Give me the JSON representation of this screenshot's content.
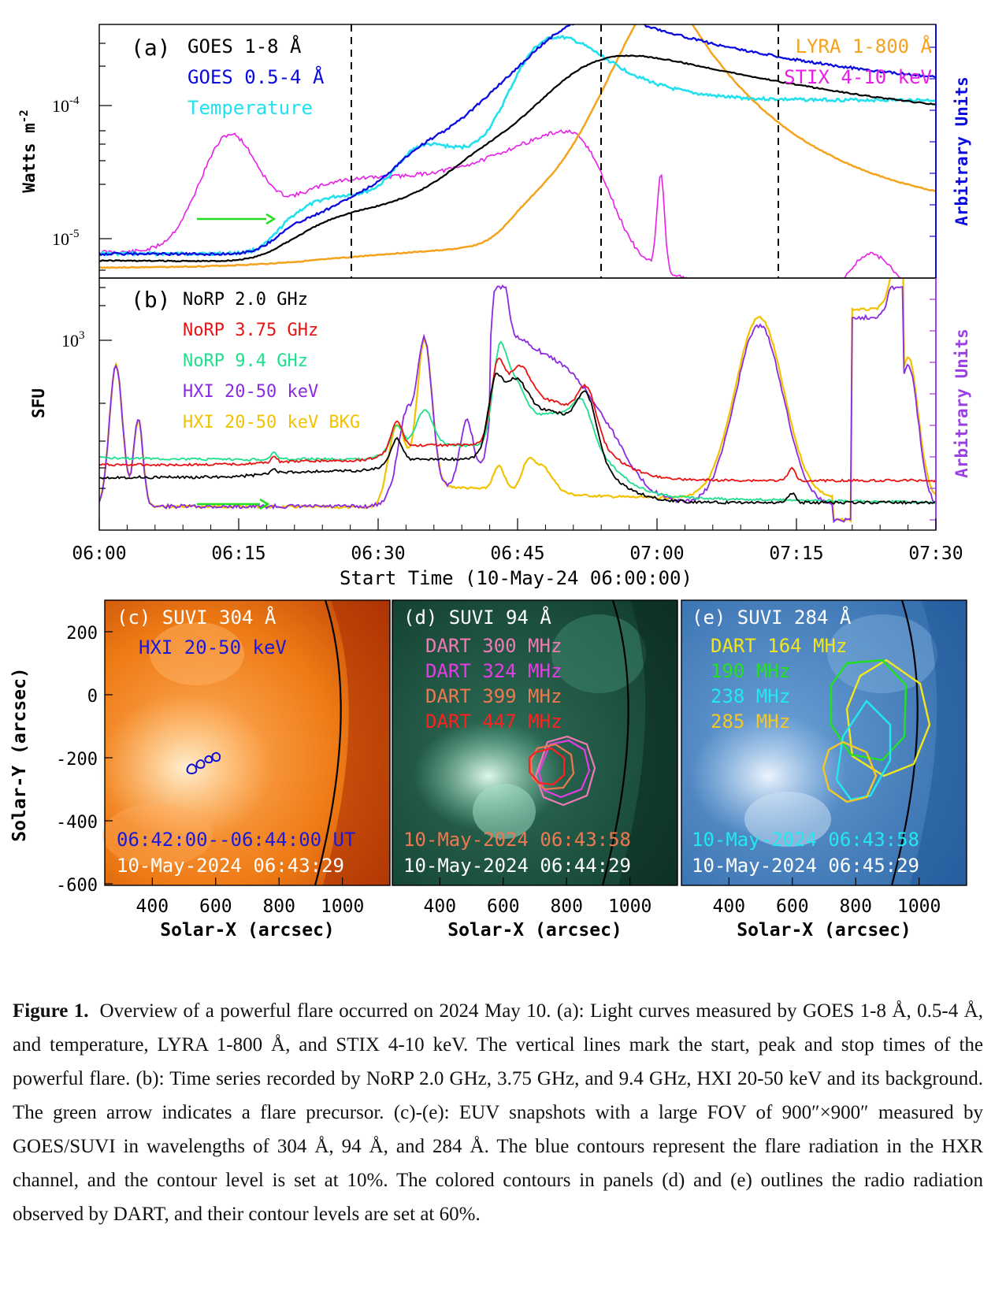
{
  "panel_a": {
    "label": "(a)",
    "ylabel_left": "Watts m",
    "ylabel_left_exp": "-2",
    "ylabel_right": "Arbitrary Units",
    "ytick_1": "10",
    "ytick_1_exp": "-4",
    "ytick_2": "10",
    "ytick_2_exp": "-5",
    "legend_left": [
      {
        "text": "GOES 1-8 Å",
        "color": "#000000"
      },
      {
        "text": "GOES 0.5-4 Å",
        "color": "#0a0ae0"
      },
      {
        "text": "Temperature",
        "color": "#22e0ee"
      }
    ],
    "legend_right": [
      {
        "text": "LYRA 1-800 Å",
        "color": "#f5a21c"
      },
      {
        "text": "STIX 4-10 keV",
        "color": "#e81ee8"
      }
    ],
    "axis_right_color": "#0a0ae0"
  },
  "panel_b": {
    "label": "(b)",
    "ylabel_left": "SFU",
    "ylabel_right": "Arbitrary Units",
    "ytick_1": "10",
    "ytick_1_exp": "3",
    "legend": [
      {
        "text": "NoRP 2.0 GHz",
        "color": "#000000"
      },
      {
        "text": "NoRP 3.75 GHz",
        "color": "#e81414"
      },
      {
        "text": "NoRP 9.4 GHz",
        "color": "#1ee08c"
      },
      {
        "text": "HXI 20-50 keV",
        "color": "#8a2be2"
      },
      {
        "text": "HXI 20-50 keV BKG",
        "color": "#f2c200"
      }
    ],
    "axis_right_color": "#9b3ee8"
  },
  "time_axis": {
    "ticks": [
      "06:00",
      "06:15",
      "06:30",
      "06:45",
      "07:00",
      "07:15",
      "07:30"
    ],
    "xlabel": "Start Time (10-May-24 06:00:00)"
  },
  "image_panels": {
    "ylabel": "Solar-Y (arcsec)",
    "xlabel": "Solar-X (arcsec)",
    "yticks": [
      "200",
      "0",
      "-200",
      "-400",
      "-600"
    ],
    "xticks": [
      "400",
      "600",
      "800",
      "1000"
    ],
    "panels": [
      {
        "title": "(c) SUVI 304 Å",
        "labels": [
          {
            "text": "HXI 20-50 keV",
            "color": "#1a1adc"
          }
        ],
        "time_contour": "06:42:00--06:44:00 UT",
        "time_contour_color": "#1a1adc",
        "time_image": "10-May-2024 06:43:29"
      },
      {
        "title": "(d) SUVI 94 Å",
        "labels": [
          {
            "text": "DART 300 MHz",
            "color": "#f07ab4"
          },
          {
            "text": "DART 324 MHz",
            "color": "#e63ce6"
          },
          {
            "text": "DART 399 MHz",
            "color": "#f07850"
          },
          {
            "text": "DART 447 MHz",
            "color": "#ff2020"
          }
        ],
        "time_contour": "10-May-2024 06:43:58",
        "time_contour_color": "#f07850",
        "time_image": "10-May-2024 06:44:29"
      },
      {
        "title": "(e) SUVI 284 Å",
        "labels": [
          {
            "text": "DART 164 MHz",
            "color": "#f2e61e"
          },
          {
            "text": "190 MHz",
            "color": "#22e022"
          },
          {
            "text": "238 MHz",
            "color": "#22e8f0"
          },
          {
            "text": "285 MHz",
            "color": "#f2c828"
          }
        ],
        "time_contour": "10-May-2024 06:43:58",
        "time_contour_color": "#22e8f0",
        "time_image": "10-May-2024 06:45:29"
      }
    ]
  },
  "caption": {
    "label": "Figure 1.",
    "text": "Overview of a powerful flare occurred on 2024 May 10. (a): Light curves measured by GOES 1-8 Å, 0.5-4 Å, and temperature, LYRA 1-800 Å, and STIX 4-10 keV. The vertical lines mark the start, peak and stop times of the powerful flare. (b): Time series recorded by NoRP 2.0 GHz, 3.75 GHz, and 9.4 GHz, HXI 20-50 keV and its background. The green arrow indicates a flare precursor. (c)-(e): EUV snapshots with a large FOV of 900″×900″ measured by GOES/SUVI in wavelengths of 304 Å, 94 Å, and 284 Å. The blue contours represent the flare radiation in the HXR channel, and the contour level is set at 10%. The colored contours in panels (d) and (e) outlines the radio radiation observed by DART, and their contour levels are set at 60%."
  }
}
